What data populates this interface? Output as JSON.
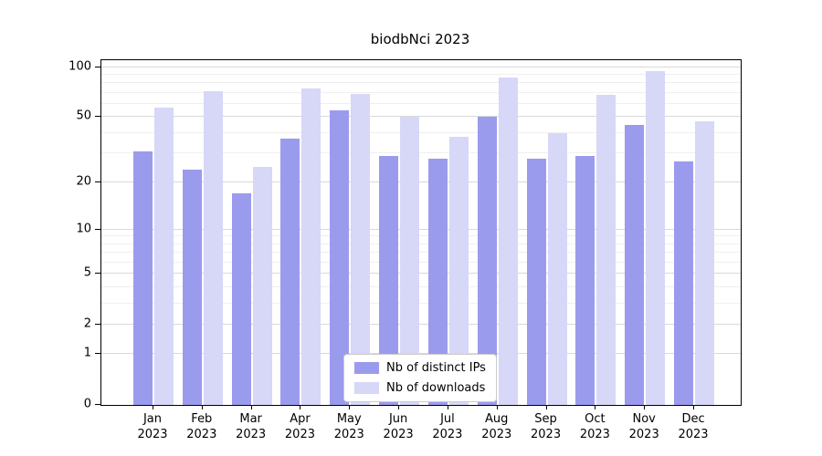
{
  "chart_data": {
    "type": "bar",
    "title": "biodbNci 2023",
    "categories": [
      "Jan 2023",
      "Feb 2023",
      "Mar 2023",
      "Apr 2023",
      "May 2023",
      "Jun 2023",
      "Jul 2023",
      "Aug 2023",
      "Sep 2023",
      "Oct 2023",
      "Nov 2023",
      "Dec 2023"
    ],
    "series": [
      {
        "name": "Nb of distinct IPs",
        "color": "#9b9bee",
        "values": [
          31,
          24,
          17,
          37,
          55,
          29,
          28,
          50,
          28,
          29,
          45,
          27
        ]
      },
      {
        "name": "Nb of downloads",
        "color": "#d7d7f8",
        "values": [
          57,
          72,
          25,
          74,
          69,
          50,
          38,
          87,
          40,
          68,
          95,
          47
        ]
      }
    ],
    "yticks": [
      0,
      1,
      2,
      5,
      10,
      20,
      50,
      100
    ],
    "ylim": [
      0,
      110
    ],
    "scale": "log1p",
    "grid": true,
    "legend_position": "lower center"
  }
}
